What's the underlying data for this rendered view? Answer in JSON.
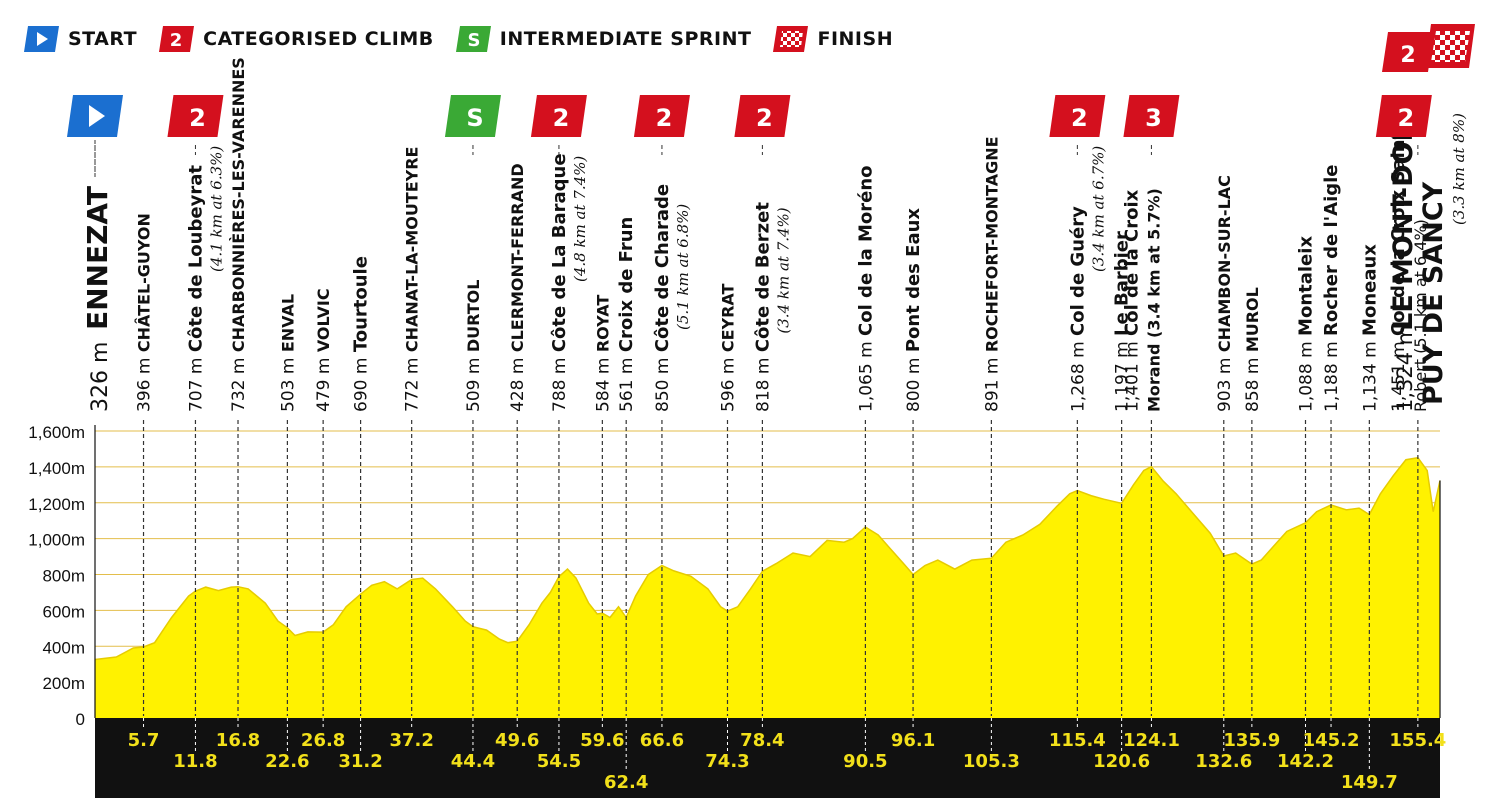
{
  "legend": {
    "start": "START",
    "climb": "CATEGORISED CLIMB",
    "climb_icon_text": "2",
    "sprint": "INTERMEDIATE SPRINT",
    "sprint_icon_text": "S",
    "finish": "FINISH"
  },
  "colors": {
    "profile_fill": "#fff200",
    "start_flag": "#1b6fd0",
    "climb_flag": "#d4101e",
    "sprint_flag": "#3aa935",
    "km_band": "#111111",
    "km_text": "#f2e01a"
  },
  "chart_data": {
    "type": "area",
    "title": "",
    "xlabel": "",
    "ylabel": "",
    "xlim": [
      0,
      158
    ],
    "ylim": [
      0,
      1600
    ],
    "y_ticks": [
      {
        "v": 0,
        "label": "0"
      },
      {
        "v": 200,
        "label": "200m"
      },
      {
        "v": 400,
        "label": "400m"
      },
      {
        "v": 600,
        "label": "600m"
      },
      {
        "v": 800,
        "label": "800m"
      },
      {
        "v": 1000,
        "label": "1,000m"
      },
      {
        "v": 1200,
        "label": "1,200m"
      },
      {
        "v": 1400,
        "label": "1,400m"
      },
      {
        "v": 1600,
        "label": "1,600m"
      }
    ],
    "profile": [
      [
        0,
        326
      ],
      [
        2.5,
        340
      ],
      [
        4.5,
        390
      ],
      [
        5.7,
        396
      ],
      [
        7,
        420
      ],
      [
        9,
        560
      ],
      [
        11,
        680
      ],
      [
        11.8,
        707
      ],
      [
        13,
        730
      ],
      [
        14.5,
        710
      ],
      [
        16,
        730
      ],
      [
        16.8,
        732
      ],
      [
        18,
        720
      ],
      [
        20,
        640
      ],
      [
        21.5,
        540
      ],
      [
        22.6,
        503
      ],
      [
        23.5,
        460
      ],
      [
        25,
        480
      ],
      [
        26.8,
        479
      ],
      [
        28,
        520
      ],
      [
        29.5,
        620
      ],
      [
        31.2,
        690
      ],
      [
        32.5,
        740
      ],
      [
        34,
        760
      ],
      [
        35.5,
        720
      ],
      [
        37.2,
        772
      ],
      [
        38.5,
        780
      ],
      [
        40,
        720
      ],
      [
        42,
        620
      ],
      [
        43.5,
        540
      ],
      [
        44.4,
        509
      ],
      [
        46,
        490
      ],
      [
        47.5,
        440
      ],
      [
        48.5,
        420
      ],
      [
        49.6,
        428
      ],
      [
        51,
        520
      ],
      [
        52.5,
        640
      ],
      [
        53.5,
        700
      ],
      [
        54.5,
        788
      ],
      [
        55.5,
        830
      ],
      [
        56.5,
        780
      ],
      [
        58,
        640
      ],
      [
        59,
        580
      ],
      [
        59.6,
        584
      ],
      [
        60.5,
        560
      ],
      [
        61.5,
        620
      ],
      [
        62.4,
        561
      ],
      [
        63.5,
        680
      ],
      [
        65,
        800
      ],
      [
        66.6,
        850
      ],
      [
        68,
        820
      ],
      [
        70,
        790
      ],
      [
        72,
        720
      ],
      [
        73.5,
        620
      ],
      [
        74.3,
        596
      ],
      [
        75.5,
        620
      ],
      [
        77,
        720
      ],
      [
        78.4,
        818
      ],
      [
        80,
        860
      ],
      [
        82,
        920
      ],
      [
        84,
        900
      ],
      [
        86,
        990
      ],
      [
        88,
        980
      ],
      [
        89,
        1000
      ],
      [
        90.5,
        1065
      ],
      [
        92,
        1020
      ],
      [
        93.5,
        940
      ],
      [
        95,
        860
      ],
      [
        96.1,
        800
      ],
      [
        97.5,
        850
      ],
      [
        99,
        880
      ],
      [
        101,
        830
      ],
      [
        103,
        880
      ],
      [
        105.3,
        891
      ],
      [
        107,
        980
      ],
      [
        109,
        1020
      ],
      [
        111,
        1080
      ],
      [
        113,
        1180
      ],
      [
        114.5,
        1250
      ],
      [
        115.4,
        1268
      ],
      [
        117,
        1240
      ],
      [
        118.5,
        1220
      ],
      [
        120.6,
        1197
      ],
      [
        122,
        1300
      ],
      [
        123.2,
        1380
      ],
      [
        124.1,
        1401
      ],
      [
        125.5,
        1320
      ],
      [
        127,
        1250
      ],
      [
        129,
        1140
      ],
      [
        131,
        1030
      ],
      [
        132.6,
        903
      ],
      [
        134,
        920
      ],
      [
        135.9,
        858
      ],
      [
        137,
        880
      ],
      [
        138.5,
        960
      ],
      [
        140,
        1040
      ],
      [
        142.2,
        1088
      ],
      [
        143.5,
        1150
      ],
      [
        145.2,
        1188
      ],
      [
        147,
        1160
      ],
      [
        148.5,
        1170
      ],
      [
        149.7,
        1134
      ],
      [
        151,
        1250
      ],
      [
        152.5,
        1350
      ],
      [
        154,
        1440
      ],
      [
        155.4,
        1451
      ],
      [
        156.5,
        1380
      ],
      [
        157.2,
        1150
      ],
      [
        158,
        1324
      ]
    ],
    "waypoints": [
      {
        "km": 0,
        "km_label": "",
        "alt": "326 m",
        "name": "ENNEZAT",
        "note": "",
        "style": "big",
        "marker": "start"
      },
      {
        "km": 5.7,
        "km_label": "5.7",
        "alt": "396 m",
        "name": "CHÂTEL-GUYON",
        "note": "",
        "style": "town",
        "marker": ""
      },
      {
        "km": 11.8,
        "km_label": "11.8",
        "alt": "707 m",
        "name": "Côte de Loubeyrat",
        "note": "(4.1 km at 6.3%)",
        "style": "pass",
        "marker": "2"
      },
      {
        "km": 16.8,
        "km_label": "16.8",
        "alt": "732 m",
        "name": "CHARBONNIÈRES-LES-VARENNES",
        "note": "",
        "style": "town",
        "marker": ""
      },
      {
        "km": 22.6,
        "km_label": "22.6",
        "alt": "503 m",
        "name": "ENVAL",
        "note": "",
        "style": "town",
        "marker": ""
      },
      {
        "km": 26.8,
        "km_label": "26.8",
        "alt": "479 m",
        "name": "VOLVIC",
        "note": "",
        "style": "town",
        "marker": ""
      },
      {
        "km": 31.2,
        "km_label": "31.2",
        "alt": "690 m",
        "name": "Tourtoule",
        "note": "",
        "style": "pass",
        "marker": ""
      },
      {
        "km": 37.2,
        "km_label": "37.2",
        "alt": "772 m",
        "name": "CHANAT-LA-MOUTEYRE",
        "note": "",
        "style": "town",
        "marker": ""
      },
      {
        "km": 44.4,
        "km_label": "44.4",
        "alt": "509 m",
        "name": "DURTOL",
        "note": "",
        "style": "town",
        "marker": "S"
      },
      {
        "km": 49.6,
        "km_label": "49.6",
        "alt": "428 m",
        "name": "CLERMONT-FERRAND",
        "note": "",
        "style": "town",
        "marker": ""
      },
      {
        "km": 54.5,
        "km_label": "54.5",
        "alt": "788 m",
        "name": "Côte de La Baraque",
        "note": "(4.8 km at 7.4%)",
        "style": "pass",
        "marker": "2"
      },
      {
        "km": 59.6,
        "km_label": "59.6",
        "alt": "584 m",
        "name": "ROYAT",
        "note": "",
        "style": "town",
        "marker": ""
      },
      {
        "km": 62.4,
        "km_label": "62.4",
        "alt": "561 m",
        "name": "Croix de Frun",
        "note": "",
        "style": "pass",
        "marker": ""
      },
      {
        "km": 66.6,
        "km_label": "66.6",
        "alt": "850 m",
        "name": "Côte de Charade",
        "note": "(5.1 km at 6.8%)",
        "style": "pass",
        "marker": "2"
      },
      {
        "km": 74.3,
        "km_label": "74.3",
        "alt": "596 m",
        "name": "CEYRAT",
        "note": "",
        "style": "town",
        "marker": ""
      },
      {
        "km": 78.4,
        "km_label": "78.4",
        "alt": "818 m",
        "name": "Côte de Berzet",
        "note": "(3.4 km at 7.4%)",
        "style": "pass",
        "marker": "2"
      },
      {
        "km": 90.5,
        "km_label": "90.5",
        "alt": "1,065 m",
        "name": "Col de la Moréno",
        "note": "",
        "style": "pass",
        "marker": ""
      },
      {
        "km": 96.1,
        "km_label": "96.1",
        "alt": "800 m",
        "name": "Pont des Eaux",
        "note": "",
        "style": "pass",
        "marker": ""
      },
      {
        "km": 105.3,
        "km_label": "105.3",
        "alt": "891 m",
        "name": "ROCHEFORT-MONTAGNE",
        "note": "",
        "style": "town",
        "marker": ""
      },
      {
        "km": 115.4,
        "km_label": "115.4",
        "alt": "1,268 m",
        "name": "Col de Guéry",
        "note": "(3.4 km at 6.7%)",
        "style": "pass",
        "marker": "2"
      },
      {
        "km": 120.6,
        "km_label": "120.6",
        "alt": "1,197 m",
        "name": "Le Barbier",
        "note": "",
        "style": "pass",
        "marker": ""
      },
      {
        "km": 124.1,
        "km_label": "124.1",
        "alt": "1,401 m",
        "name": "Col de la Croix",
        "note": "Morand (3.4 km at 5.7%)",
        "style": "pass2",
        "marker": "3"
      },
      {
        "km": 132.6,
        "km_label": "132.6",
        "alt": "903 m",
        "name": "CHAMBON-SUR-LAC",
        "note": "",
        "style": "town",
        "marker": ""
      },
      {
        "km": 135.9,
        "km_label": "135.9",
        "alt": "858 m",
        "name": "MUROL",
        "note": "",
        "style": "town",
        "marker": ""
      },
      {
        "km": 142.2,
        "km_label": "142.2",
        "alt": "1,088 m",
        "name": "Montaleix",
        "note": "",
        "style": "pass",
        "marker": ""
      },
      {
        "km": 145.2,
        "km_label": "145.2",
        "alt": "1,188 m",
        "name": "Rocher de l'Aigle",
        "note": "",
        "style": "pass",
        "marker": ""
      },
      {
        "km": 149.7,
        "km_label": "149.7",
        "alt": "1,134 m",
        "name": "Moneaux",
        "note": "",
        "style": "pass",
        "marker": ""
      },
      {
        "km": 155.4,
        "km_label": "155.4",
        "alt": "1,451 m",
        "name": "Col de la Croix Saint",
        "note": "Robert (5.1 km at 6.4%)",
        "style": "pass2",
        "marker": "2"
      },
      {
        "km": 158,
        "km_label": "",
        "alt": "1,324 m",
        "name": "LE MONT-DORE",
        "note": "(3.3 km at 8%)",
        "name2": "PUY DE SANCY",
        "style": "finish",
        "marker": "finish"
      }
    ]
  }
}
